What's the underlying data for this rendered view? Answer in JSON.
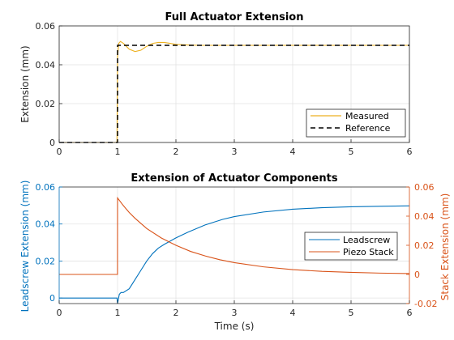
{
  "colors": {
    "measured": "#EDB120",
    "reference": "#000000",
    "leadscrew": "#0072BD",
    "piezo": "#D95319",
    "axis": "#262626",
    "grid": "#e3e3e3"
  },
  "chart_data": [
    {
      "type": "line",
      "title": "Full Actuator Extension",
      "xlabel": "",
      "ylabel": "Extension (mm)",
      "xlim": [
        0,
        6
      ],
      "ylim": [
        0,
        0.06
      ],
      "xticks": [
        0,
        1,
        2,
        3,
        4,
        5,
        6
      ],
      "xtick_labels": [
        "0",
        "1",
        "2",
        "3",
        "4",
        "5",
        "6"
      ],
      "yticks": [
        0,
        0.02,
        0.04,
        0.06
      ],
      "ytick_labels": [
        "0",
        "0.02",
        "0.04",
        "0.06"
      ],
      "grid": true,
      "legend_position": "bottom-right",
      "series": [
        {
          "name": "Measured",
          "style": "solid",
          "x": [
            0,
            0.99,
            1.0,
            1.02,
            1.05,
            1.1,
            1.15,
            1.2,
            1.3,
            1.4,
            1.5,
            1.6,
            1.7,
            1.8,
            1.9,
            2.0,
            2.2,
            2.4,
            2.6,
            3.0,
            4.0,
            5.0,
            6.0
          ],
          "y": [
            0,
            0,
            0.044,
            0.051,
            0.052,
            0.051,
            0.0495,
            0.048,
            0.0468,
            0.0475,
            0.0495,
            0.051,
            0.0515,
            0.0515,
            0.051,
            0.0505,
            0.0502,
            0.05,
            0.05,
            0.05,
            0.05,
            0.05,
            0.05
          ]
        },
        {
          "name": "Reference",
          "style": "dashed",
          "x": [
            0,
            1.0,
            1.0,
            6.0
          ],
          "y": [
            0,
            0,
            0.05,
            0.05
          ]
        }
      ]
    },
    {
      "type": "line",
      "title": "Extension of Actuator Components",
      "xlabel": "Time (s)",
      "ylabel_left": "Leadscrew Extension (mm)",
      "ylabel_right": "Stack Extension (mm)",
      "xlim": [
        0,
        6
      ],
      "ylim_left": [
        -0.003,
        0.06
      ],
      "ylim_right": [
        -0.02,
        0.06
      ],
      "xticks": [
        0,
        1,
        2,
        3,
        4,
        5,
        6
      ],
      "xtick_labels": [
        "0",
        "1",
        "2",
        "3",
        "4",
        "5",
        "6"
      ],
      "yticks_left": [
        0,
        0.02,
        0.04,
        0.06
      ],
      "ytick_labels_left": [
        "0",
        "0.02",
        "0.04",
        "0.06"
      ],
      "yticks_right": [
        -0.02,
        0,
        0.02,
        0.04,
        0.06
      ],
      "ytick_labels_right": [
        "-0.02",
        "0",
        "0.02",
        "0.04",
        "0.06"
      ],
      "grid": true,
      "legend_position": "right",
      "series": [
        {
          "name": "Leadscrew",
          "axis": "left",
          "x": [
            0,
            0.99,
            1.0,
            1.03,
            1.06,
            1.1,
            1.2,
            1.3,
            1.4,
            1.5,
            1.6,
            1.7,
            1.8,
            2.0,
            2.2,
            2.5,
            2.8,
            3.0,
            3.5,
            4.0,
            4.5,
            5.0,
            5.5,
            6.0
          ],
          "y": [
            0,
            0,
            -0.003,
            0.002,
            0.003,
            0.003,
            0.005,
            0.01,
            0.015,
            0.02,
            0.024,
            0.027,
            0.029,
            0.0325,
            0.0355,
            0.0395,
            0.0425,
            0.044,
            0.0465,
            0.048,
            0.0488,
            0.0493,
            0.0496,
            0.0498
          ]
        },
        {
          "name": "Piezo Stack",
          "axis": "right",
          "x": [
            0,
            0.999,
            1.0,
            1.05,
            1.1,
            1.2,
            1.3,
            1.5,
            1.75,
            2.0,
            2.25,
            2.5,
            2.75,
            3.0,
            3.5,
            4.0,
            4.5,
            5.0,
            5.5,
            6.0
          ],
          "y": [
            0,
            0,
            0.0525,
            0.0498,
            0.0472,
            0.0425,
            0.0385,
            0.0315,
            0.025,
            0.02,
            0.0158,
            0.0127,
            0.0101,
            0.0081,
            0.0052,
            0.0033,
            0.0021,
            0.0014,
            0.0009,
            0.0006
          ]
        }
      ]
    }
  ]
}
